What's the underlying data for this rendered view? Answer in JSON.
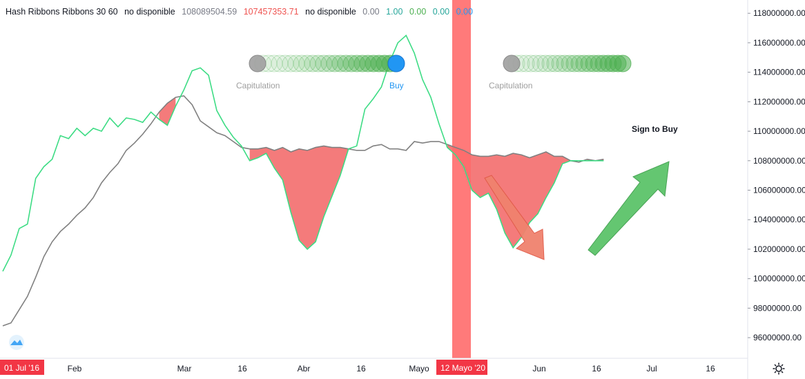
{
  "legend": {
    "title": "Hash Ribbons Ribbons 30 60",
    "v1": "no disponible",
    "v2": "108089504.59",
    "v3": "107457353.71",
    "v4": "no disponible",
    "v5": "0.00",
    "v6": "1.00",
    "v7": "0.00",
    "v8": "0.00",
    "v9": "0.00"
  },
  "annotations": {
    "capitulation_1": "Capitulation",
    "buy": "Buy",
    "capitulation_2": "Capitulation",
    "sign_to_buy": "Sign to Buy"
  },
  "colors": {
    "fast_line": "#3ddc84",
    "slow_line": "#808080",
    "fill": "#f47b7b",
    "vband": "#ff6b6b",
    "buy_dot": "#2196f3",
    "cap_dot": "#9e9e9e",
    "badge": "#f23645"
  },
  "chart_data": {
    "type": "line",
    "title": "Hash Ribbons Ribbons 30 60",
    "x_ticks": [
      "Feb",
      "Mar",
      "16",
      "Abr",
      "16",
      "Mayo",
      "Jun",
      "16",
      "Jul",
      "16"
    ],
    "x_badges": [
      "01 Jul '16",
      "12 Mayo '20"
    ],
    "y_ticks": [
      "118000000.00",
      "116000000.00",
      "114000000.00",
      "112000000.00",
      "110000000.00",
      "108000000.00",
      "106000000.00",
      "104000000.00",
      "102000000.00",
      "100000000.00",
      "98000000.00",
      "96000000.00"
    ],
    "ylim": [
      94600000,
      118900000
    ],
    "xlim": [
      0,
      181
    ],
    "series": [
      {
        "name": "Hash Ribbons 30",
        "color": "#3ddc84",
        "x": [
          0,
          2,
          4,
          6,
          8,
          10,
          12,
          14,
          16,
          18,
          20,
          22,
          24,
          26,
          28,
          30,
          32,
          34,
          36,
          38,
          40,
          42,
          44,
          46,
          48,
          50,
          52,
          54,
          56,
          58,
          60,
          62,
          64,
          66,
          68,
          70,
          72,
          74,
          76,
          78,
          80,
          82,
          84,
          86,
          88,
          90,
          92,
          94,
          96,
          98,
          100,
          102,
          104,
          106,
          108,
          110,
          112,
          114,
          116,
          118,
          120,
          122,
          124,
          126,
          128,
          130,
          132,
          134,
          136,
          138,
          140,
          142,
          144,
          146
        ],
        "values": [
          100500000,
          101600000,
          103400000,
          103700000,
          106800000,
          107600000,
          108100000,
          109700000,
          109500000,
          110200000,
          109700000,
          110200000,
          110000000,
          110900000,
          110300000,
          110900000,
          110800000,
          110600000,
          111300000,
          110800000,
          110400000,
          111700000,
          112800000,
          114100000,
          114300000,
          113800000,
          111400000,
          110400000,
          109600000,
          109000000,
          108000000,
          108200000,
          108500000,
          107500000,
          106700000,
          104500000,
          102600000,
          102000000,
          102500000,
          104200000,
          105600000,
          107000000,
          108800000,
          109000000,
          111500000,
          112200000,
          113000000,
          114700000,
          116000000,
          116500000,
          115300000,
          113500000,
          112300000,
          110500000,
          108900000,
          108400000,
          107600000,
          106000000,
          105500000,
          105800000,
          104700000,
          103100000,
          102100000,
          102800000,
          103800000,
          104400000,
          105500000,
          106500000,
          107800000,
          108000000,
          108000000,
          108000000,
          108000000,
          108000000
        ]
      },
      {
        "name": "Hash Ribbons 60",
        "color": "#808080",
        "x": [
          0,
          2,
          4,
          6,
          8,
          10,
          12,
          14,
          16,
          18,
          20,
          22,
          24,
          26,
          28,
          30,
          32,
          34,
          36,
          38,
          40,
          42,
          44,
          46,
          48,
          50,
          52,
          54,
          56,
          58,
          60,
          62,
          64,
          66,
          68,
          70,
          72,
          74,
          76,
          78,
          80,
          82,
          84,
          86,
          88,
          90,
          92,
          94,
          96,
          98,
          100,
          102,
          104,
          106,
          108,
          110,
          112,
          114,
          116,
          118,
          120,
          122,
          124,
          126,
          128,
          130,
          132,
          134,
          136,
          138,
          140,
          142,
          144,
          146
        ],
        "values": [
          96800000,
          97000000,
          97900000,
          98800000,
          100100000,
          101500000,
          102500000,
          103200000,
          103700000,
          104300000,
          104800000,
          105500000,
          106500000,
          107200000,
          107800000,
          108700000,
          109200000,
          109800000,
          110500000,
          111300000,
          111900000,
          112300000,
          112400000,
          111800000,
          110700000,
          110300000,
          109900000,
          109700000,
          109300000,
          108900000,
          108800000,
          108800000,
          108900000,
          108700000,
          108900000,
          108600000,
          108800000,
          108700000,
          108900000,
          109000000,
          108900000,
          108900000,
          108800000,
          108700000,
          108700000,
          109000000,
          109100000,
          108800000,
          108800000,
          108700000,
          109300000,
          109200000,
          109300000,
          109300000,
          109100000,
          108900000,
          108700000,
          108400000,
          108300000,
          108300000,
          108400000,
          108300000,
          108500000,
          108400000,
          108200000,
          108400000,
          108600000,
          108300000,
          108300000,
          108000000,
          107900000,
          108100000,
          108000000,
          108100000
        ]
      }
    ],
    "grid": false,
    "legend": "top-left"
  }
}
